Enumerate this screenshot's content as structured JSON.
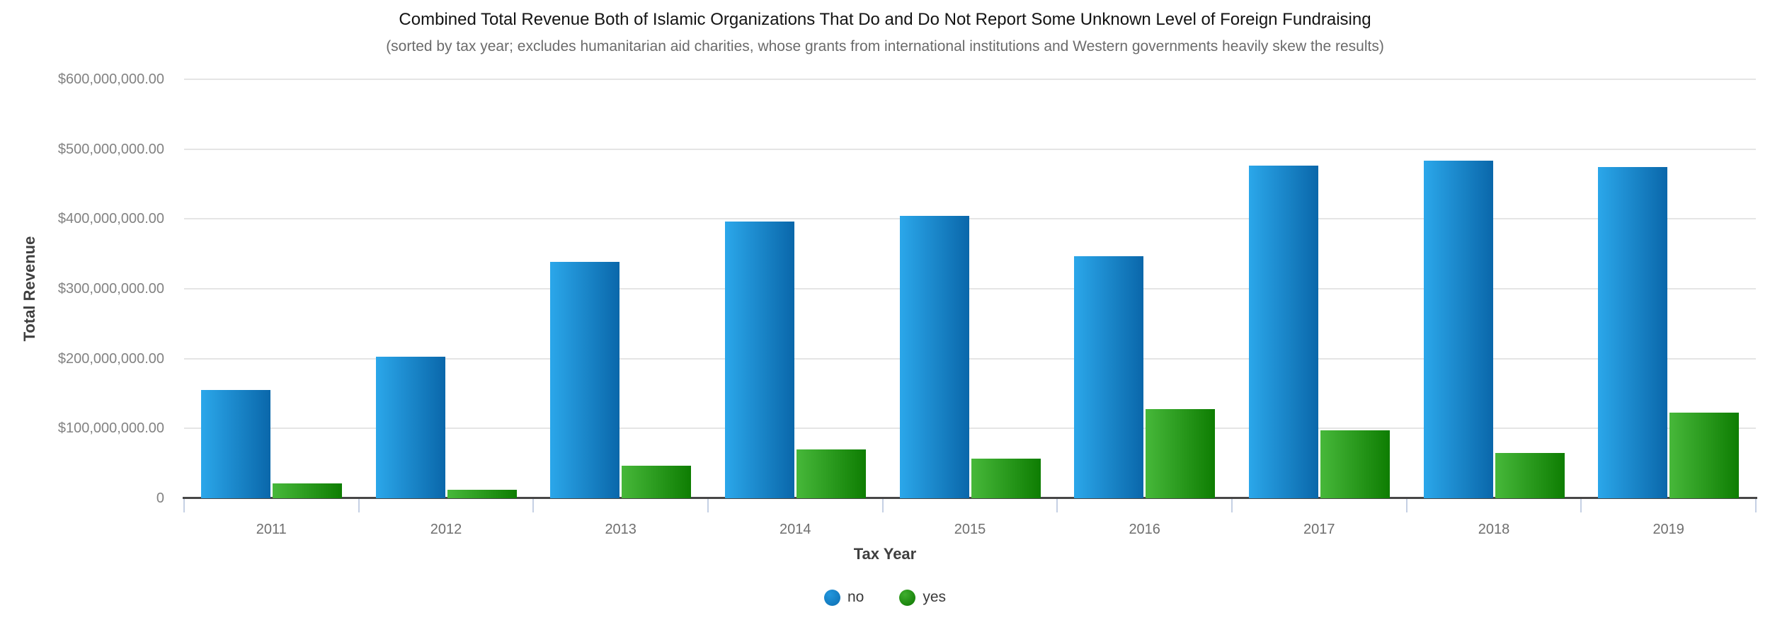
{
  "chart_data": {
    "type": "bar",
    "title": "Combined Total Revenue Both of Islamic Organizations That Do and Do Not Report Some Unknown Level of Foreign Fundraising",
    "subtitle": "(sorted by tax year; excludes humanitarian aid charities, whose grants from international institutions and Western governments heavily skew the results)",
    "xlabel": "Tax Year",
    "ylabel": "Total Revenue",
    "categories": [
      "2011",
      "2012",
      "2013",
      "2014",
      "2015",
      "2016",
      "2017",
      "2018",
      "2019"
    ],
    "series": [
      {
        "name": "no",
        "values": [
          155000000,
          203000000,
          339000000,
          396000000,
          404000000,
          347000000,
          476000000,
          483000000,
          474000000
        ],
        "color_light": "#2ba7ea",
        "color_dark": "#0a67aa",
        "legend_light": "#2196dd",
        "legend_dark": "#0f72b5"
      },
      {
        "name": "yes",
        "values": [
          21000000,
          12000000,
          47000000,
          70000000,
          57000000,
          128000000,
          97000000,
          65000000,
          123000000
        ],
        "color_light": "#47b83a",
        "color_dark": "#0e7d02",
        "legend_light": "#3fae2e",
        "legend_dark": "#117a04"
      }
    ],
    "ylim": [
      0,
      600000000
    ],
    "y_tick_labels": [
      "$600,000,000.00",
      "$500,000,000.00",
      "$400,000,000.00",
      "$300,000,000.00",
      "$200,000,000.00",
      "$100,000,000.00",
      "0"
    ],
    "grid": "horizontal-only",
    "legend_position": "bottom-center"
  },
  "colors": {
    "background": "#ffffff",
    "gridline": "#e5e5e5",
    "axis_line": "#474747",
    "boundary_tick": "#c5d0e4",
    "title_text": "#141414",
    "subtitle_text": "#6b6b6b",
    "tick_label_text": "#828282",
    "category_label_text": "#6f6f6f",
    "axis_title_text": "#3f3f3f",
    "legend_text": "#3a3a3a"
  }
}
